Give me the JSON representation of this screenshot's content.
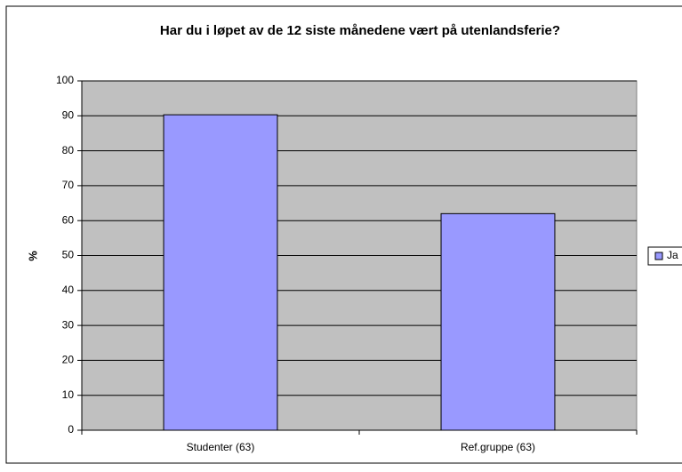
{
  "chart_data": {
    "type": "bar",
    "title": "Har du i løpet av de 12 siste månedene vært på utenlandsferie?",
    "y_label": "%",
    "categories": [
      "Studenter (63)",
      "Ref.gruppe (63)"
    ],
    "series": [
      {
        "name": "Ja",
        "color": "#9999ff",
        "values": [
          90.3,
          62
        ]
      }
    ],
    "ylim": [
      0,
      100
    ],
    "yticks": [
      0,
      10,
      20,
      30,
      40,
      50,
      60,
      70,
      80,
      90,
      100
    ],
    "grid": true,
    "legend": "right"
  }
}
